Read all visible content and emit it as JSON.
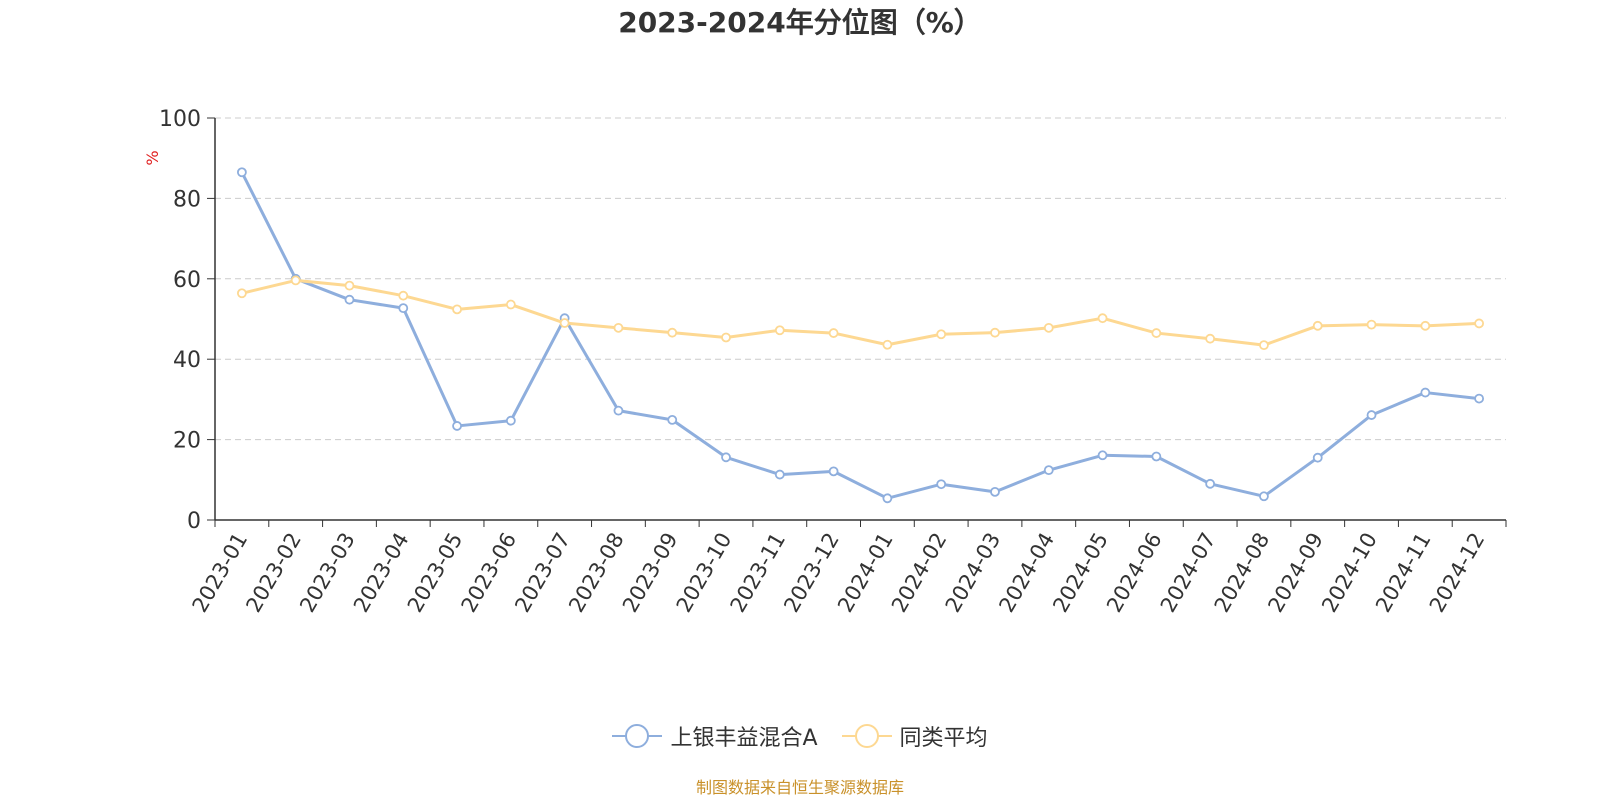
{
  "chart_data": {
    "type": "line",
    "title": "2023-2024年分位图（%）",
    "ylabel": "%",
    "xlabel": "",
    "ylim": [
      0,
      100
    ],
    "yticks": [
      0,
      20,
      40,
      60,
      80,
      100
    ],
    "grid": true,
    "legend_position": "bottom",
    "categories": [
      "2023-01",
      "2023-02",
      "2023-03",
      "2023-04",
      "2023-05",
      "2023-06",
      "2023-07",
      "2023-08",
      "2023-09",
      "2023-10",
      "2023-11",
      "2023-12",
      "2024-01",
      "2024-02",
      "2024-03",
      "2024-04",
      "2024-05",
      "2024-06",
      "2024-07",
      "2024-08",
      "2024-09",
      "2024-10",
      "2024-11",
      "2024-12"
    ],
    "series": [
      {
        "name": "上银丰益混合A",
        "color": "#8eaedd",
        "values": [
          86.5,
          60.0,
          54.8,
          52.7,
          23.4,
          24.7,
          50.2,
          27.2,
          24.9,
          15.6,
          11.3,
          12.1,
          5.4,
          8.9,
          7.0,
          12.4,
          16.1,
          15.8,
          9.0,
          5.9,
          15.5,
          26.1,
          31.7,
          30.2
        ]
      },
      {
        "name": "同类平均",
        "color": "#fdd892",
        "values": [
          56.4,
          59.6,
          58.3,
          55.8,
          52.4,
          53.6,
          49.0,
          47.8,
          46.6,
          45.4,
          47.2,
          46.5,
          43.6,
          46.2,
          46.6,
          47.8,
          50.2,
          46.5,
          45.1,
          43.5,
          48.3,
          48.6,
          48.3,
          48.9
        ]
      }
    ]
  },
  "source": {
    "text": "制图数据来自恒生聚源数据库",
    "color": "#c9912a"
  },
  "ylabel_color": "#e02020"
}
